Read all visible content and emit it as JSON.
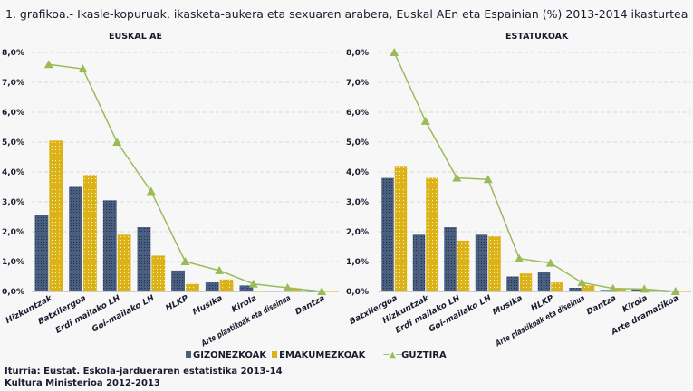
{
  "title": "1. grafikoa.- Ikasle-kopuruak, ikasketa-aukera eta sexuaren arabera, Euskal AEn eta Espainian (%) 2013-2014 ikasturtea",
  "legend": {
    "men": "GIZONEZKOAK",
    "women": "EMAKUMEZKOAK",
    "total": "GUZTIRA"
  },
  "source": {
    "line1": "Iturria: Eustat. Eskola-jardueraren estatistika 2013-14",
    "line2": "Kultura Ministerioa 2012-2013"
  },
  "colors": {
    "men": "#4a5f80",
    "women": "#dbb318",
    "total": "#9bbb59"
  },
  "chart_data": [
    {
      "type": "bar",
      "title": "EUSKAL AE",
      "ylim": [
        0,
        8
      ],
      "yticks": [
        "0,0%",
        "1,0%",
        "2,0%",
        "3,0%",
        "4,0%",
        "5,0%",
        "6,0%",
        "7,0%",
        "8,0%"
      ],
      "grid": true,
      "legend": "bottom",
      "categories": [
        "Hizkuntzak",
        "Batxilergoa",
        "Erdi mailako LH",
        "Goi-mailako LH",
        "HLKP",
        "Musika",
        "Kirola",
        "Arte plastikoak eta diseinua",
        "Dantza"
      ],
      "series": [
        {
          "name": "GIZONEZKOAK",
          "type": "bar",
          "values": [
            2.55,
            3.5,
            3.05,
            2.15,
            0.7,
            0.3,
            0.2,
            0.02,
            0.0
          ]
        },
        {
          "name": "EMAKUMEZKOAK",
          "type": "bar",
          "values": [
            5.05,
            3.9,
            1.9,
            1.2,
            0.25,
            0.4,
            0.0,
            0.1,
            0.0
          ]
        },
        {
          "name": "GUZTIRA",
          "type": "line",
          "values": [
            7.6,
            7.45,
            5.0,
            3.35,
            1.0,
            0.7,
            0.25,
            0.12,
            0.0
          ]
        }
      ]
    },
    {
      "type": "bar",
      "title": "ESTATUKOAK",
      "ylim": [
        0,
        8
      ],
      "yticks": [
        "0,0%",
        "1,0%",
        "2,0%",
        "3,0%",
        "4,0%",
        "5,0%",
        "6,0%",
        "7,0%",
        "8,0%"
      ],
      "grid": true,
      "legend": "bottom",
      "categories": [
        "Batxilergoa",
        "Hizkuntzak",
        "Erdi mailako LH",
        "Goi-mailako LH",
        "Musika",
        "HLKP",
        "Arte plastikoak eta diseinua",
        "Dantza",
        "Kirola",
        "Arte dramatikoa"
      ],
      "series": [
        {
          "name": "GIZONEZKOAK",
          "type": "bar",
          "values": [
            3.8,
            1.9,
            2.15,
            1.9,
            0.5,
            0.65,
            0.12,
            0.05,
            0.08,
            0.0
          ]
        },
        {
          "name": "EMAKUMEZKOAK",
          "type": "bar",
          "values": [
            4.2,
            3.8,
            1.7,
            1.85,
            0.6,
            0.3,
            0.2,
            0.1,
            0.05,
            0.0
          ]
        },
        {
          "name": "GUZTIRA",
          "type": "line",
          "values": [
            8.0,
            5.7,
            3.8,
            3.75,
            1.1,
            0.95,
            0.3,
            0.1,
            0.08,
            0.0
          ]
        }
      ]
    }
  ]
}
